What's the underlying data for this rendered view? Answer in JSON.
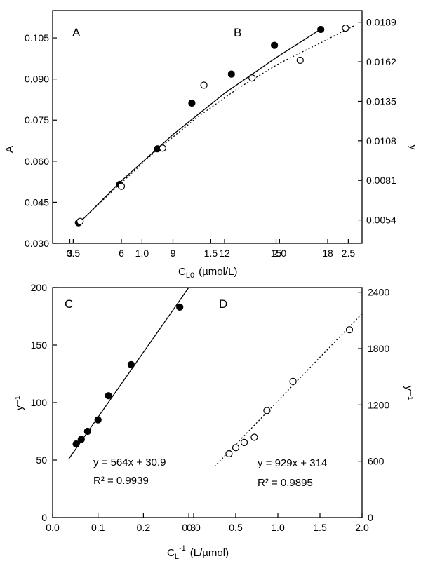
{
  "chart_data": [
    {
      "type": "scatter",
      "panel_label": "A",
      "axis": "bottom-left",
      "xlim": [
        2,
        20
      ],
      "ylim": [
        0.03,
        0.115
      ],
      "xticks": [
        3,
        6,
        9,
        12,
        15,
        18
      ],
      "yticks": [
        0.03,
        0.045,
        0.06,
        0.075,
        0.09,
        0.105
      ],
      "ytick_labels": [
        "0.030",
        "0.045",
        "0.060",
        "0.075",
        "0.090",
        "0.105"
      ],
      "ylabel": "A",
      "marker": "filled-circle",
      "fit": "solid-curve",
      "points": [
        [
          3.5,
          0.0375
        ],
        [
          5.9,
          0.0515
        ],
        [
          8.1,
          0.0645
        ],
        [
          10.1,
          0.0812
        ],
        [
          12.4,
          0.0918
        ],
        [
          14.9,
          0.1023
        ],
        [
          17.6,
          0.1081
        ]
      ],
      "fit_curve": [
        [
          3.5,
          0.0372
        ],
        [
          6,
          0.0528
        ],
        [
          9,
          0.0697
        ],
        [
          12,
          0.0848
        ],
        [
          15,
          0.0978
        ],
        [
          17.6,
          0.1082
        ]
      ]
    },
    {
      "type": "scatter",
      "panel_label": "B",
      "axis": "top-right",
      "xlim": [
        0.35,
        2.6
      ],
      "ylim": [
        0.0038,
        0.0197
      ],
      "xticks": [
        0.5,
        1.0,
        1.5,
        2.0,
        2.5
      ],
      "xtick_labels": [
        "0.5",
        "1.0",
        "1.5",
        "2.0",
        "2.5"
      ],
      "yticks": [
        0.0054,
        0.0081,
        0.0108,
        0.0135,
        0.0162,
        0.0189
      ],
      "ytick_labels": [
        "0.0054",
        "0.0081",
        "0.0108",
        "0.0135",
        "0.0162",
        "0.0189"
      ],
      "ylabel": "y",
      "marker": "open-circle",
      "fit": "dotted-curve",
      "points": [
        [
          0.55,
          0.0053
        ],
        [
          0.85,
          0.0077
        ],
        [
          1.15,
          0.0103
        ],
        [
          1.45,
          0.0146
        ],
        [
          1.8,
          0.0151
        ],
        [
          2.15,
          0.0163
        ],
        [
          2.48,
          0.0185
        ]
      ],
      "fit_curve": [
        [
          0.55,
          0.0053
        ],
        [
          0.8,
          0.0075
        ],
        [
          1.1,
          0.0101
        ],
        [
          1.4,
          0.0124
        ],
        [
          1.7,
          0.0144
        ],
        [
          2.0,
          0.0161
        ],
        [
          2.3,
          0.0175
        ],
        [
          2.55,
          0.0187
        ]
      ]
    },
    {
      "type": "scatter",
      "panel_label": "C",
      "axis": "bottom-left",
      "xlim": [
        0.0,
        0.34
      ],
      "ylim": [
        0,
        200
      ],
      "xticks": [
        0.0,
        0.1,
        0.2,
        0.3
      ],
      "xtick_labels": [
        "0.0",
        "0.1",
        "0.2",
        "0.3"
      ],
      "yticks": [
        0,
        50,
        100,
        150,
        200
      ],
      "ylabel": "y⁻¹",
      "marker": "filled-circle",
      "fit": "solid-line",
      "equation": "y = 564x + 30.9",
      "r2": "R² = 0.9939",
      "points": [
        [
          0.052,
          64
        ],
        [
          0.063,
          68
        ],
        [
          0.077,
          75
        ],
        [
          0.1,
          85
        ],
        [
          0.123,
          106
        ],
        [
          0.173,
          133
        ],
        [
          0.28,
          183
        ]
      ],
      "fit_line": [
        [
          0.035,
          50.6
        ],
        [
          0.3,
          200.1
        ]
      ]
    },
    {
      "type": "scatter",
      "panel_label": "D",
      "axis": "right",
      "xlim": [
        -0.05,
        2.0
      ],
      "ylim": [
        0,
        2450
      ],
      "xticks": [
        0.0,
        0.5,
        1.0,
        1.5,
        2.0
      ],
      "xtick_labels": [
        "0.0",
        "0.5",
        "1.0",
        "1.5",
        "2.0"
      ],
      "yticks": [
        0,
        600,
        1200,
        1800,
        2400
      ],
      "ylabel": "y⁻¹",
      "marker": "open-circle",
      "fit": "dotted-line",
      "equation": "y = 929x + 314",
      "r2": "R² = 0.9895",
      "points": [
        [
          0.42,
          680
        ],
        [
          0.5,
          745
        ],
        [
          0.6,
          800
        ],
        [
          0.72,
          855
        ],
        [
          0.87,
          1140
        ],
        [
          1.18,
          1450
        ],
        [
          1.85,
          2000
        ]
      ],
      "fit_line": [
        [
          0.25,
          546
        ],
        [
          2.0,
          2172
        ]
      ]
    }
  ],
  "xlabel_top": "C",
  "xlabel_top_sub": "L0",
  "xlabel_top_unit": "(µmol/L)",
  "xlabel_bottom": "C",
  "xlabel_bottom_sub": "L",
  "xlabel_bottom_sup": "-1",
  "xlabel_bottom_unit": "(L/µmol)"
}
